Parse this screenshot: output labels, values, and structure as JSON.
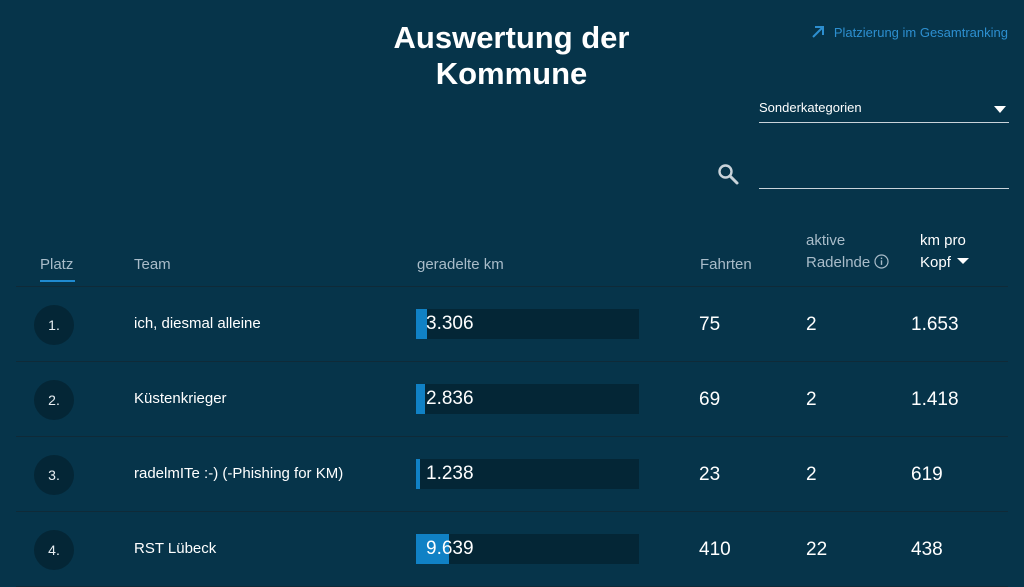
{
  "title": "Auswertung der Kommune",
  "ranking_link": "Platzierung im Gesamtranking",
  "category_select": {
    "value": "Sonderkategorien"
  },
  "search": {
    "value": ""
  },
  "columns": {
    "platz": "Platz",
    "team": "Team",
    "km": "geradelte km",
    "fahrten": "Fahrten",
    "aktive_line1": "aktive",
    "aktive_line2": "Radelnde",
    "kopf_line1": "km pro",
    "kopf_line2": "Kopf"
  },
  "rows": [
    {
      "rank": "1.",
      "team": "ich, diesmal alleine",
      "km": "3.306",
      "km_fraction": 0.05,
      "fahrten": "75",
      "aktive": "2",
      "kopf": "1.653"
    },
    {
      "rank": "2.",
      "team": "Küstenkrieger",
      "km": "2.836",
      "km_fraction": 0.04,
      "fahrten": "69",
      "aktive": "2",
      "kopf": "1.418"
    },
    {
      "rank": "3.",
      "team": "radelmITe :-) (-Phishing for KM)",
      "km": "1.238",
      "km_fraction": 0.02,
      "fahrten": "23",
      "aktive": "2",
      "kopf": "619"
    },
    {
      "rank": "4.",
      "team": "RST Lübeck",
      "km": "9.639",
      "km_fraction": 0.15,
      "fahrten": "410",
      "aktive": "22",
      "kopf": "438"
    }
  ],
  "colors": {
    "background": "#06344a",
    "accent": "#1081c5",
    "link": "#2d8fd0"
  },
  "icons": {
    "link": "arrow-up-right-icon",
    "select": "caret-down-icon",
    "search": "search-icon",
    "info": "info-icon",
    "sort": "sort-desc-icon"
  }
}
